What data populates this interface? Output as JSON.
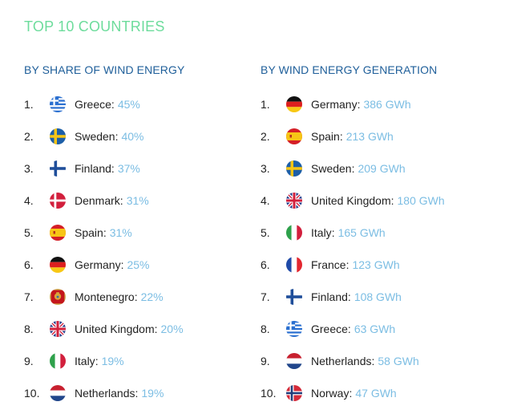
{
  "header": {
    "title": "TOP 10 COUNTRIES"
  },
  "chart_data": [
    {
      "type": "table",
      "title": "BY SHARE OF WIND ENERGY",
      "columns": [
        "rank",
        "country",
        "share"
      ],
      "rows": [
        {
          "rank": "1.",
          "country": "Greece",
          "value": "45%",
          "flag": "greece-flag-icon"
        },
        {
          "rank": "2.",
          "country": "Sweden",
          "value": "40%",
          "flag": "sweden-flag-icon"
        },
        {
          "rank": "3.",
          "country": "Finland",
          "value": "37%",
          "flag": "finland-flag-icon"
        },
        {
          "rank": "4.",
          "country": "Denmark",
          "value": "31%",
          "flag": "denmark-flag-icon"
        },
        {
          "rank": "5.",
          "country": "Spain",
          "value": "31%",
          "flag": "spain-flag-icon"
        },
        {
          "rank": "6.",
          "country": "Germany",
          "value": "25%",
          "flag": "germany-flag-icon"
        },
        {
          "rank": "7.",
          "country": "Montenegro",
          "value": "22%",
          "flag": "montenegro-flag-icon"
        },
        {
          "rank": "8.",
          "country": "United Kingdom",
          "value": "20%",
          "flag": "united-kingdom-flag-icon"
        },
        {
          "rank": "9.",
          "country": "Italy",
          "value": "19%",
          "flag": "italy-flag-icon"
        },
        {
          "rank": "10.",
          "country": "Netherlands",
          "value": "19%",
          "flag": "netherlands-flag-icon"
        }
      ]
    },
    {
      "type": "table",
      "title": "BY WIND ENERGY GENERATION",
      "columns": [
        "rank",
        "country",
        "generation"
      ],
      "rows": [
        {
          "rank": "1.",
          "country": "Germany",
          "value": "386 GWh",
          "flag": "germany-flag-icon"
        },
        {
          "rank": "2.",
          "country": "Spain",
          "value": "213 GWh",
          "flag": "spain-flag-icon"
        },
        {
          "rank": "3.",
          "country": "Sweden",
          "value": "209 GWh",
          "flag": "sweden-flag-icon"
        },
        {
          "rank": "4.",
          "country": "United Kingdom",
          "value": "180 GWh",
          "flag": "united-kingdom-flag-icon"
        },
        {
          "rank": "5.",
          "country": "Italy",
          "value": "165 GWh",
          "flag": "italy-flag-icon"
        },
        {
          "rank": "6.",
          "country": "France",
          "value": "123 GWh",
          "flag": "france-flag-icon"
        },
        {
          "rank": "7.",
          "country": "Finland",
          "value": "108 GWh",
          "flag": "finland-flag-icon"
        },
        {
          "rank": "8.",
          "country": "Greece",
          "value": "63 GWh",
          "flag": "greece-flag-icon"
        },
        {
          "rank": "9.",
          "country": "Netherlands",
          "value": "58 GWh",
          "flag": "netherlands-flag-icon"
        },
        {
          "rank": "10.",
          "country": "Norway",
          "value": "47 GWh",
          "flag": "norway-flag-icon"
        }
      ]
    }
  ],
  "colors": {
    "title": "#6ddc9c",
    "heading": "#1f5f9a",
    "value": "#7bbde3",
    "text": "#222222"
  }
}
